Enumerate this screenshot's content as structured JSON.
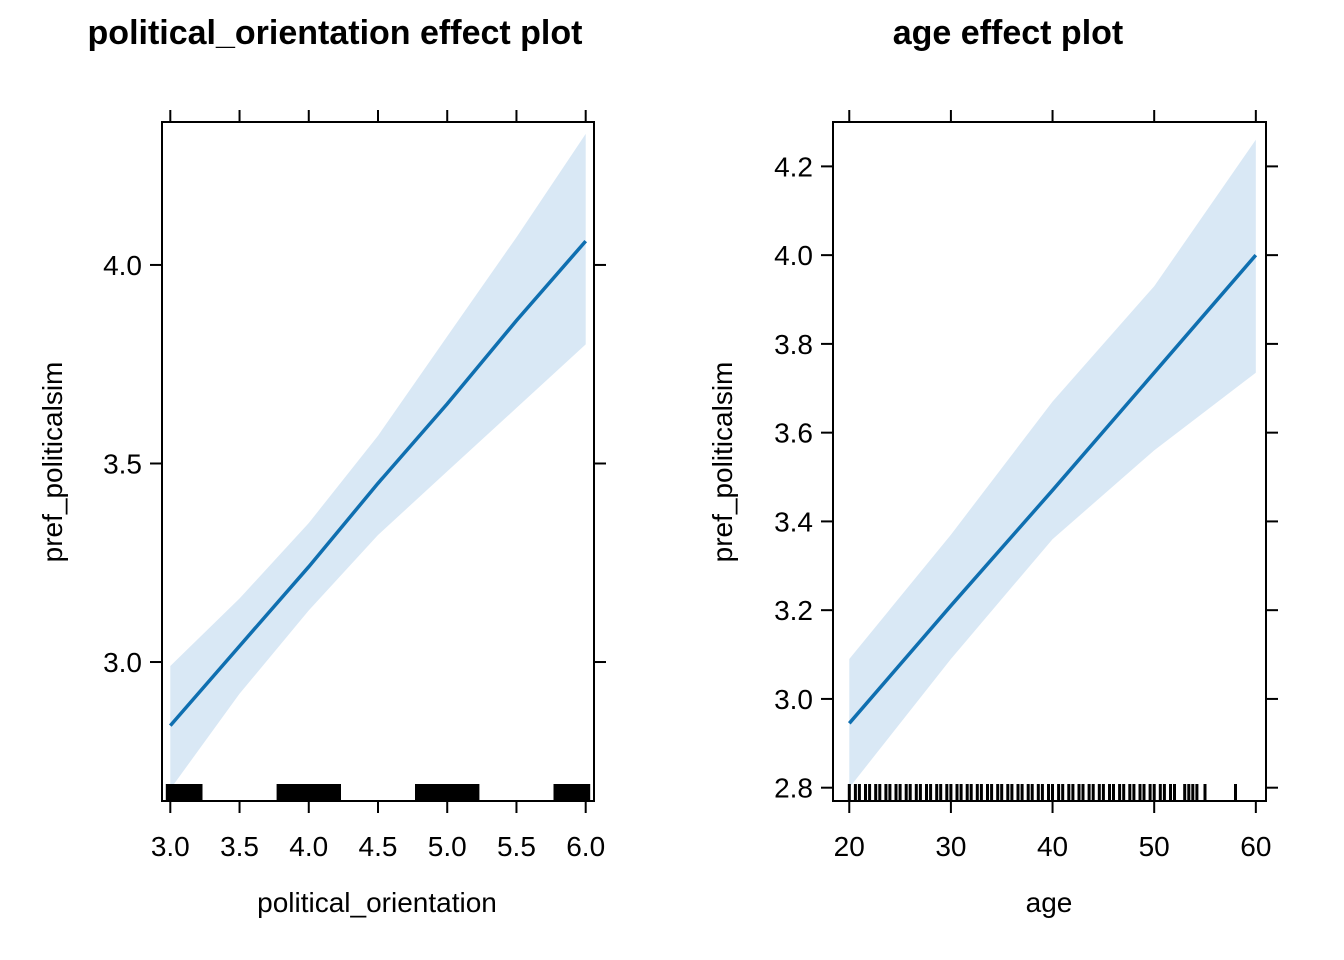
{
  "chart_data": [
    {
      "type": "line",
      "title": "political_orientation effect plot",
      "xlabel": "political_orientation",
      "ylabel": "pref_politicalsim",
      "xlim": [
        2.94,
        6.06
      ],
      "ylim": [
        2.65,
        4.36
      ],
      "x_ticks": [
        3.0,
        3.5,
        4.0,
        4.5,
        5.0,
        5.5,
        6.0
      ],
      "x_tick_labels": [
        "3.0",
        "3.5",
        "4.0",
        "4.5",
        "5.0",
        "5.5",
        "6.0"
      ],
      "y_ticks": [
        3.0,
        3.5,
        4.0
      ],
      "y_tick_labels": [
        "3.0",
        "3.5",
        "4.0"
      ],
      "series": [
        {
          "x": [
            3.0,
            3.5,
            4.0,
            4.5,
            5.0,
            5.5,
            6.0
          ],
          "fit": [
            2.84,
            3.04,
            3.24,
            3.45,
            3.65,
            3.86,
            4.06
          ],
          "lower": [
            2.68,
            2.92,
            3.13,
            3.32,
            3.48,
            3.64,
            3.8
          ],
          "upper": [
            2.99,
            3.16,
            3.35,
            3.57,
            3.82,
            4.07,
            4.33
          ]
        }
      ],
      "rug": [
        3.0,
        3.05,
        3.1,
        3.15,
        3.2,
        3.8,
        3.85,
        3.9,
        3.95,
        4.0,
        4.05,
        4.1,
        4.15,
        4.2,
        4.8,
        4.85,
        4.9,
        4.95,
        5.0,
        5.05,
        5.1,
        5.15,
        5.2,
        5.8,
        5.85,
        5.9,
        5.95,
        6.0
      ]
    },
    {
      "type": "line",
      "title": "age effect plot",
      "xlabel": "age",
      "ylabel": "pref_politicalsim",
      "xlim": [
        18.4,
        61.0
      ],
      "ylim": [
        2.77,
        4.3
      ],
      "x_ticks": [
        20,
        30,
        40,
        50,
        60
      ],
      "x_tick_labels": [
        "20",
        "30",
        "40",
        "50",
        "60"
      ],
      "y_ticks": [
        2.8,
        3.0,
        3.2,
        3.4,
        3.6,
        3.8,
        4.0,
        4.2
      ],
      "y_tick_labels": [
        "2.8",
        "3.0",
        "3.2",
        "3.4",
        "3.6",
        "3.8",
        "4.0",
        "4.2"
      ],
      "series": [
        {
          "x": [
            20,
            30,
            40,
            50,
            60
          ],
          "fit": [
            2.945,
            3.21,
            3.47,
            3.735,
            4.0
          ],
          "lower": [
            2.8,
            3.09,
            3.36,
            3.56,
            3.735
          ],
          "upper": [
            3.09,
            3.37,
            3.67,
            3.93,
            4.26
          ]
        }
      ],
      "rug": [
        20,
        20.6,
        21,
        21.6,
        22,
        22.6,
        23,
        23.6,
        24,
        24.6,
        25,
        25.6,
        26,
        26.6,
        27,
        27.6,
        28,
        28.6,
        29,
        29.6,
        30,
        30.6,
        31,
        31.6,
        32,
        32.6,
        33,
        33.6,
        34,
        34.6,
        35,
        35.6,
        36,
        36.6,
        37,
        37.6,
        38,
        38.6,
        39,
        39.6,
        40,
        40.6,
        41,
        41.6,
        42,
        42.6,
        43,
        43.6,
        44,
        44.6,
        45,
        45.6,
        46,
        46.6,
        47,
        47.6,
        48,
        48.6,
        49,
        49.6,
        50,
        50.6,
        51,
        51.6,
        52,
        53,
        53.4,
        53.8,
        54.2,
        55,
        58
      ]
    }
  ]
}
